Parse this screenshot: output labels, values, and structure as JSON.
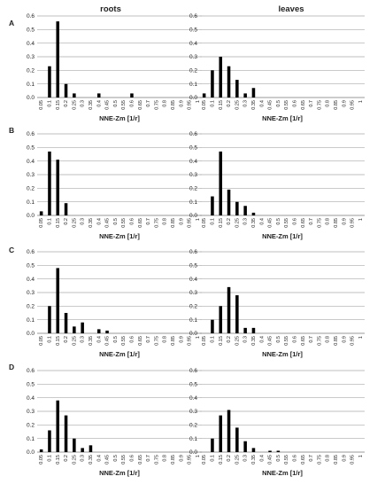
{
  "column_titles": [
    "roots",
    "leaves"
  ],
  "row_labels": [
    "A",
    "B",
    "C",
    "D"
  ],
  "xlabel": "NNE-Zm [1/r]",
  "chart_data": [
    {
      "panel": "A-roots",
      "type": "bar",
      "bar_color": "#000000",
      "grid": true,
      "ylim": [
        0,
        0.6
      ],
      "yticks": [
        "0.0",
        "0.1",
        "0.2",
        "0.3",
        "0.4",
        "0.5",
        "0.6"
      ],
      "categories": [
        "0.05",
        "0.1",
        "0.15",
        "0.2",
        "0.25",
        "0.3",
        "0.35",
        "0.4",
        "0.45",
        "0.5",
        "0.55",
        "0.6",
        "0.65",
        "0.7",
        "0.75",
        "0.8",
        "0.85",
        "0.9",
        "0.95",
        "1"
      ],
      "values": [
        0,
        0.23,
        0.56,
        0.1,
        0.03,
        0,
        0,
        0.03,
        0,
        0,
        0,
        0.03,
        0,
        0,
        0,
        0,
        0,
        0,
        0,
        0
      ],
      "xlabel": "NNE-Zm [1/r]"
    },
    {
      "panel": "A-leaves",
      "type": "bar",
      "bar_color": "#000000",
      "grid": true,
      "ylim": [
        0,
        0.6
      ],
      "yticks": [
        "0.0",
        "0.1",
        "0.2",
        "0.3",
        "0.4",
        "0.5",
        "0.6"
      ],
      "categories": [
        "0.05",
        "0.1",
        "0.15",
        "0.2",
        "0.25",
        "0.3",
        "0.35",
        "0.4",
        "0.45",
        "0.5",
        "0.55",
        "0.6",
        "0.65",
        "0.7",
        "0.75",
        "0.8",
        "0.85",
        "0.9",
        "0.95",
        "1"
      ],
      "values": [
        0.03,
        0.2,
        0.3,
        0.23,
        0.13,
        0.03,
        0.07,
        0,
        0,
        0,
        0,
        0,
        0,
        0,
        0,
        0,
        0,
        0,
        0,
        0
      ],
      "xlabel": "NNE-Zm [1/r]"
    },
    {
      "panel": "B-roots",
      "type": "bar",
      "bar_color": "#000000",
      "grid": true,
      "ylim": [
        0,
        0.6
      ],
      "yticks": [
        "0.0",
        "0.1",
        "0.2",
        "0.3",
        "0.4",
        "0.5",
        "0.6"
      ],
      "categories": [
        "0.05",
        "0.1",
        "0.15",
        "0.2",
        "0.25",
        "0.3",
        "0.35",
        "0.4",
        "0.45",
        "0.5",
        "0.55",
        "0.6",
        "0.65",
        "0.7",
        "0.75",
        "0.8",
        "0.85",
        "0.9",
        "0.95",
        "1"
      ],
      "values": [
        0.03,
        0.47,
        0.41,
        0.09,
        0,
        0,
        0,
        0,
        0,
        0,
        0,
        0,
        0,
        0,
        0,
        0,
        0,
        0,
        0,
        0
      ],
      "xlabel": "NNE-Zm [1/r]"
    },
    {
      "panel": "B-leaves",
      "type": "bar",
      "bar_color": "#000000",
      "grid": true,
      "ylim": [
        0,
        0.6
      ],
      "yticks": [
        "0.0",
        "0.1",
        "0.2",
        "0.3",
        "0.4",
        "0.5",
        "0.6"
      ],
      "categories": [
        "0.05",
        "0.1",
        "0.15",
        "0.2",
        "0.25",
        "0.3",
        "0.35",
        "0.4",
        "0.45",
        "0.5",
        "0.55",
        "0.6",
        "0.65",
        "0.7",
        "0.75",
        "0.8",
        "0.85",
        "0.9",
        "0.95",
        "1"
      ],
      "values": [
        0,
        0.14,
        0.47,
        0.19,
        0.1,
        0.07,
        0.02,
        0,
        0,
        0,
        0,
        0,
        0,
        0,
        0,
        0,
        0,
        0,
        0,
        0
      ],
      "xlabel": "NNE-Zm [1/r]"
    },
    {
      "panel": "C-roots",
      "type": "bar",
      "bar_color": "#000000",
      "grid": true,
      "ylim": [
        0,
        0.6
      ],
      "yticks": [
        "0.0",
        "0.1",
        "0.2",
        "0.3",
        "0.4",
        "0.5",
        "0.6"
      ],
      "categories": [
        "0.05",
        "0.1",
        "0.15",
        "0.2",
        "0.25",
        "0.3",
        "0.35",
        "0.4",
        "0.45",
        "0.5",
        "0.55",
        "0.6",
        "0.65",
        "0.7",
        "0.75",
        "0.8",
        "0.85",
        "0.9",
        "0.95",
        "1"
      ],
      "values": [
        0,
        0.2,
        0.48,
        0.15,
        0.05,
        0.08,
        0,
        0.03,
        0.02,
        0,
        0,
        0,
        0,
        0,
        0,
        0,
        0,
        0,
        0,
        0
      ],
      "xlabel": "NNE-Zm [1/r]"
    },
    {
      "panel": "C-leaves",
      "type": "bar",
      "bar_color": "#000000",
      "grid": true,
      "ylim": [
        0,
        0.6
      ],
      "yticks": [
        "0.0",
        "0.1",
        "0.2",
        "0.3",
        "0.4",
        "0.5",
        "0.6"
      ],
      "categories": [
        "0.05",
        "0.1",
        "0.15",
        "0.2",
        "0.25",
        "0.3",
        "0.35",
        "0.4",
        "0.45",
        "0.5",
        "0.55",
        "0.6",
        "0.65",
        "0.7",
        "0.75",
        "0.8",
        "0.85",
        "0.9",
        "0.95",
        "1"
      ],
      "values": [
        0,
        0.1,
        0.2,
        0.34,
        0.28,
        0.04,
        0.04,
        0,
        0,
        0,
        0,
        0,
        0,
        0,
        0,
        0,
        0,
        0,
        0,
        0
      ],
      "xlabel": "NNE-Zm [1/r]"
    },
    {
      "panel": "D-roots",
      "type": "bar",
      "bar_color": "#000000",
      "grid": true,
      "ylim": [
        0,
        0.6
      ],
      "yticks": [
        "0.0",
        "0.1",
        "0.2",
        "0.3",
        "0.4",
        "0.5",
        "0.6"
      ],
      "categories": [
        "0.05",
        "0.1",
        "0.15",
        "0.2",
        "0.25",
        "0.3",
        "0.35",
        "0.4",
        "0.45",
        "0.5",
        "0.55",
        "0.6",
        "0.65",
        "0.7",
        "0.75",
        "0.8",
        "0.85",
        "0.9",
        "0.95",
        "1"
      ],
      "values": [
        0.02,
        0.16,
        0.38,
        0.27,
        0.1,
        0.03,
        0.05,
        0,
        0,
        0,
        0,
        0,
        0,
        0,
        0,
        0,
        0,
        0,
        0,
        0
      ],
      "xlabel": "NNE-Zm [1/r]"
    },
    {
      "panel": "D-leaves",
      "type": "bar",
      "bar_color": "#000000",
      "grid": true,
      "ylim": [
        0,
        0.6
      ],
      "yticks": [
        "0.0",
        "0.1",
        "0.2",
        "0.3",
        "0.4",
        "0.5",
        "0.6"
      ],
      "categories": [
        "0.05",
        "0.1",
        "0.15",
        "0.2",
        "0.25",
        "0.3",
        "0.35",
        "0.4",
        "0.45",
        "0.5",
        "0.55",
        "0.6",
        "0.65",
        "0.7",
        "0.75",
        "0.8",
        "0.85",
        "0.9",
        "0.95",
        "1"
      ],
      "values": [
        0,
        0.1,
        0.27,
        0.31,
        0.18,
        0.08,
        0.03,
        0,
        0.01,
        0.01,
        0,
        0,
        0,
        0,
        0,
        0,
        0,
        0,
        0,
        0
      ],
      "xlabel": "NNE-Zm [1/r]"
    }
  ]
}
